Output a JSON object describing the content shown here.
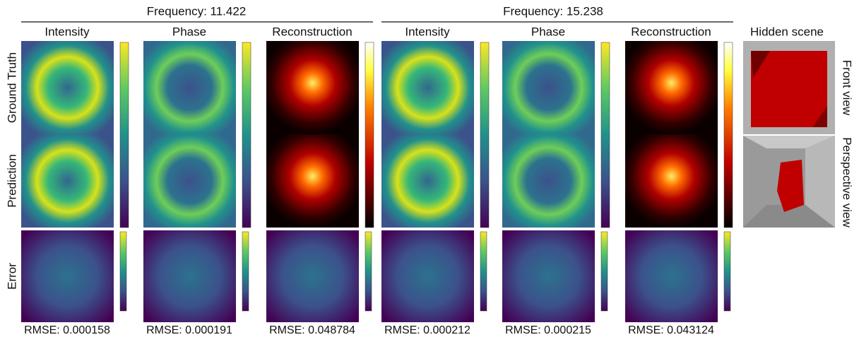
{
  "groups": [
    {
      "title": "Frequency: 11.422",
      "columns": [
        "Intensity",
        "Phase",
        "Reconstruction"
      ],
      "rmse": [
        "RMSE: 0.000158",
        "RMSE: 0.000191",
        "RMSE: 0.048784"
      ]
    },
    {
      "title": "Frequency: 15.238",
      "columns": [
        "Intensity",
        "Phase",
        "Reconstruction"
      ],
      "rmse": [
        "RMSE: 0.000212",
        "RMSE: 0.000215",
        "RMSE: 0.043124"
      ]
    }
  ],
  "rows": [
    "Ground Truth",
    "Prediction",
    "Error"
  ],
  "hidden_scene": {
    "title": "Hidden scene",
    "views": [
      "Front view",
      "Perspective view"
    ]
  }
}
